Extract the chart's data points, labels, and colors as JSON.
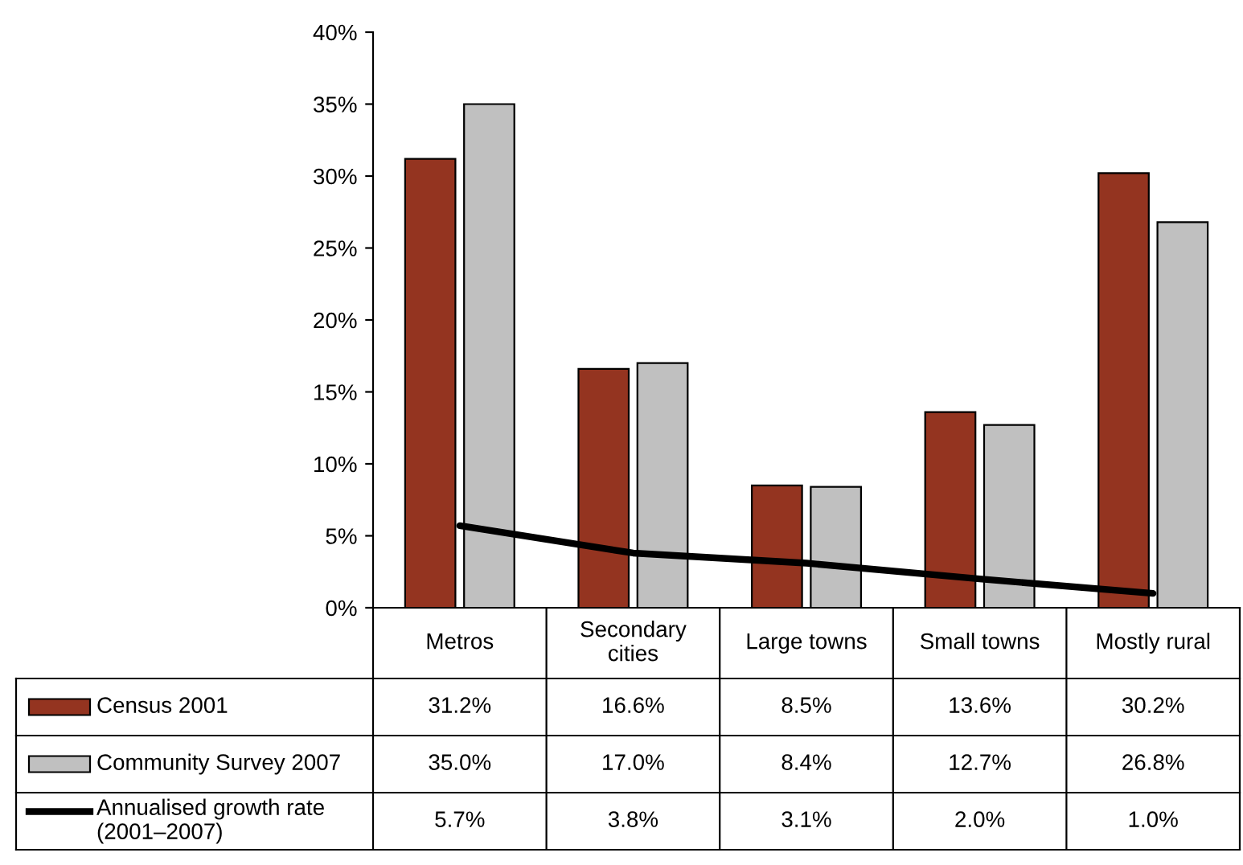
{
  "chart_data": {
    "type": "bar",
    "categories": [
      "Metros",
      "Secondary\ncities",
      "Large towns",
      "Small towns",
      "Mostly rural"
    ],
    "series": [
      {
        "name": "Census 2001",
        "color": "#943420",
        "values": [
          31.2,
          16.6,
          8.5,
          13.6,
          30.2
        ],
        "value_labels": [
          "31.2%",
          "16.6%",
          "8.5%",
          "13.6%",
          "30.2%"
        ]
      },
      {
        "name": "Community Survey 2007",
        "color": "#c0c0c0",
        "values": [
          35.0,
          17.0,
          8.4,
          12.7,
          26.8
        ],
        "value_labels": [
          "35.0%",
          "17.0%",
          "8.4%",
          "12.7%",
          "26.8%"
        ]
      },
      {
        "name": "Annualised growth rate\n(2001–2007)",
        "type": "line",
        "color": "#000000",
        "values": [
          5.7,
          3.8,
          3.1,
          2.0,
          1.0
        ],
        "value_labels": [
          "5.7%",
          "3.8%",
          "3.1%",
          "2.0%",
          "1.0%"
        ]
      }
    ],
    "ylim": [
      0,
      40
    ],
    "yticks": [
      {
        "value": 0,
        "label": "0%"
      },
      {
        "value": 5,
        "label": "5%"
      },
      {
        "value": 10,
        "label": "10%"
      },
      {
        "value": 15,
        "label": "15%"
      },
      {
        "value": 20,
        "label": "20%"
      },
      {
        "value": 25,
        "label": "25%"
      },
      {
        "value": 30,
        "label": "30%"
      },
      {
        "value": 35,
        "label": "35%"
      },
      {
        "value": 40,
        "label": "40%"
      }
    ],
    "grid": false,
    "legend": "bottom left"
  }
}
